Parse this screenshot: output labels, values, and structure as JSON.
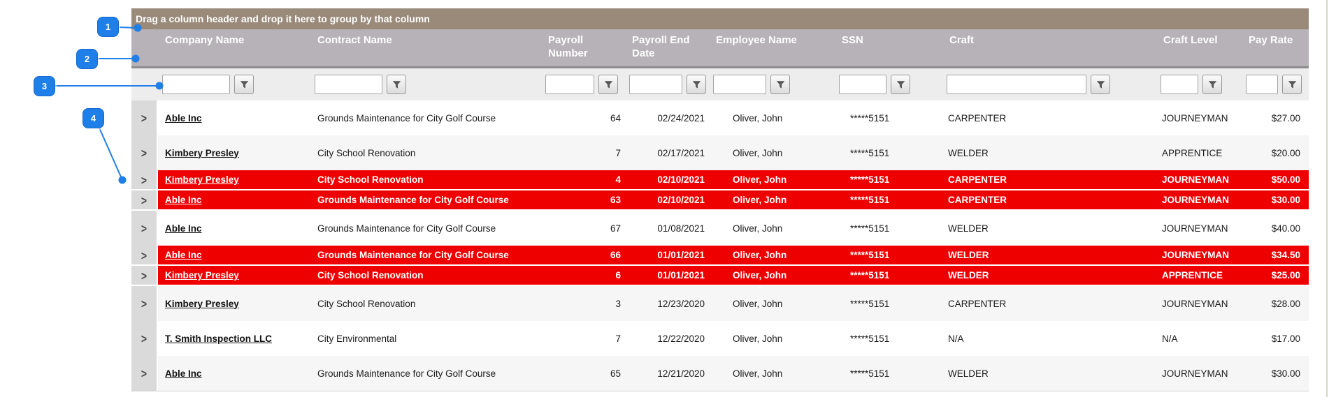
{
  "callouts": [
    {
      "label": "1",
      "points_to": "group-by-bar"
    },
    {
      "label": "2",
      "points_to": "column-header-row"
    },
    {
      "label": "3",
      "points_to": "filter-row"
    },
    {
      "label": "4",
      "points_to": "row-expander"
    }
  ],
  "group_bar": {
    "text": "Drag a column header and drop it here to group by that column"
  },
  "columns": [
    {
      "key": "expander",
      "label": "",
      "has_filter": false
    },
    {
      "key": "company-name",
      "label": "Company Name",
      "has_filter": true,
      "filter_value": "",
      "input_width": 97
    },
    {
      "key": "contract-name",
      "label": "Contract Name",
      "has_filter": true,
      "filter_value": "",
      "input_width": 97
    },
    {
      "key": "payroll-number",
      "label": "Payroll Number",
      "has_filter": true,
      "filter_value": "",
      "input_width": 70
    },
    {
      "key": "payroll-end-date",
      "label": "Payroll End Date",
      "has_filter": true,
      "filter_value": "",
      "input_width": 76
    },
    {
      "key": "employee-name",
      "label": "Employee Name",
      "has_filter": true,
      "filter_value": "",
      "input_width": 76
    },
    {
      "key": "ssn",
      "label": "SSN",
      "has_filter": true,
      "filter_value": "",
      "input_width": 68
    },
    {
      "key": "craft",
      "label": "Craft",
      "has_filter": true,
      "filter_value": "",
      "input_width": 200
    },
    {
      "key": "craft-level",
      "label": "Craft Level",
      "has_filter": true,
      "filter_value": "",
      "input_width": 54
    },
    {
      "key": "pay-rate",
      "label": "Pay Rate",
      "has_filter": true,
      "filter_value": "",
      "input_width": 46
    }
  ],
  "rows": [
    {
      "company": "Able Inc",
      "contract": "Grounds Maintenance for City Golf Course",
      "payroll_number": "64",
      "payroll_end_date": "02/24/2021",
      "employee_name": "Oliver, John",
      "ssn": "*****5151",
      "craft": "CARPENTER",
      "craft_level": "JOURNEYMAN",
      "pay_rate": "$27.00",
      "highlighted": false
    },
    {
      "company": "Kimbery Presley",
      "contract": "City School Renovation",
      "payroll_number": "7",
      "payroll_end_date": "02/17/2021",
      "employee_name": "Oliver, John",
      "ssn": "*****5151",
      "craft": "WELDER",
      "craft_level": "APPRENTICE",
      "pay_rate": "$20.00",
      "highlighted": false
    },
    {
      "company": "Kimbery Presley",
      "contract": "City School Renovation",
      "payroll_number": "4",
      "payroll_end_date": "02/10/2021",
      "employee_name": "Oliver, John",
      "ssn": "*****5151",
      "craft": "CARPENTER",
      "craft_level": "JOURNEYMAN",
      "pay_rate": "$50.00",
      "highlighted": true
    },
    {
      "company": "Able Inc",
      "contract": "Grounds Maintenance for City Golf Course",
      "payroll_number": "63",
      "payroll_end_date": "02/10/2021",
      "employee_name": "Oliver, John",
      "ssn": "*****5151",
      "craft": "CARPENTER",
      "craft_level": "JOURNEYMAN",
      "pay_rate": "$30.00",
      "highlighted": true
    },
    {
      "company": "Able Inc",
      "contract": "Grounds Maintenance for City Golf Course",
      "payroll_number": "67",
      "payroll_end_date": "01/08/2021",
      "employee_name": "Oliver, John",
      "ssn": "*****5151",
      "craft": "WELDER",
      "craft_level": "JOURNEYMAN",
      "pay_rate": "$40.00",
      "highlighted": false
    },
    {
      "company": "Able Inc",
      "contract": "Grounds Maintenance for City Golf Course",
      "payroll_number": "66",
      "payroll_end_date": "01/01/2021",
      "employee_name": "Oliver, John",
      "ssn": "*****5151",
      "craft": "WELDER",
      "craft_level": "JOURNEYMAN",
      "pay_rate": "$34.50",
      "highlighted": true
    },
    {
      "company": "Kimbery Presley",
      "contract": "City School Renovation",
      "payroll_number": "6",
      "payroll_end_date": "01/01/2021",
      "employee_name": "Oliver, John",
      "ssn": "*****5151",
      "craft": "WELDER",
      "craft_level": "APPRENTICE",
      "pay_rate": "$25.00",
      "highlighted": true
    },
    {
      "company": "Kimbery Presley",
      "contract": "City School Renovation",
      "payroll_number": "3",
      "payroll_end_date": "12/23/2020",
      "employee_name": "Oliver, John",
      "ssn": "*****5151",
      "craft": "CARPENTER",
      "craft_level": "JOURNEYMAN",
      "pay_rate": "$28.00",
      "highlighted": false
    },
    {
      "company": "T. Smith Inspection LLC",
      "contract": "City Environmental",
      "payroll_number": "7",
      "payroll_end_date": "12/22/2020",
      "employee_name": "Oliver, John",
      "ssn": "*****5151",
      "craft": "N/A",
      "craft_level": "N/A",
      "pay_rate": "$17.00",
      "highlighted": false
    },
    {
      "company": "Able Inc",
      "contract": "Grounds Maintenance for City Golf Course",
      "payroll_number": "65",
      "payroll_end_date": "12/21/2020",
      "employee_name": "Oliver, John",
      "ssn": "*****5151",
      "craft": "WELDER",
      "craft_level": "JOURNEYMAN",
      "pay_rate": "$30.00",
      "highlighted": false
    }
  ],
  "icons": {
    "expand": "chevron-right-icon",
    "filter": "funnel-icon"
  },
  "colors": {
    "highlight_row": "#ee0000",
    "callout_blue": "#1f7fe8",
    "group_bar_bg": "#9a8a7a",
    "header_bg": "#b6b2b7",
    "filter_row_bg": "#ededed",
    "alt_row_bg": "#f6f6f6"
  }
}
